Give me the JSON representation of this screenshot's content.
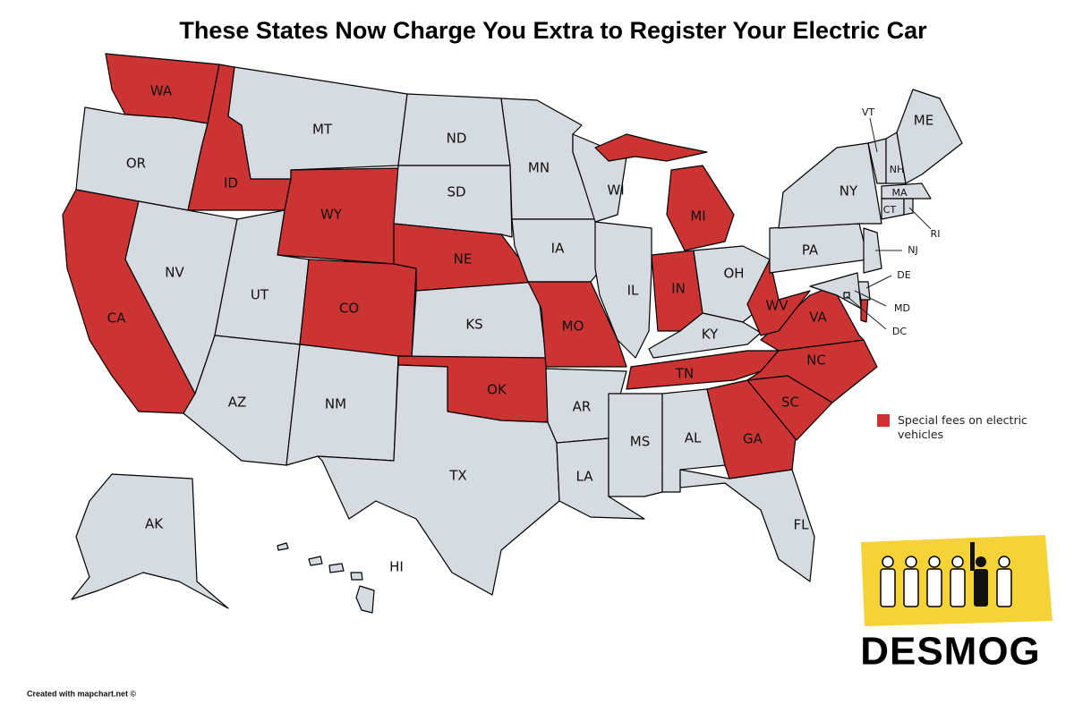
{
  "title": "These States Now Charge You Extra to Register Your Electric Car",
  "legend": {
    "label": "Special fees on electric vehicles",
    "color": "#cc3333"
  },
  "default_color": "#d5dbe0",
  "states": [
    {
      "label": "WA",
      "fee": true
    },
    {
      "label": "OR",
      "fee": false
    },
    {
      "label": "CA",
      "fee": true
    },
    {
      "label": "ID",
      "fee": true
    },
    {
      "label": "NV",
      "fee": false
    },
    {
      "label": "MT",
      "fee": false
    },
    {
      "label": "WY",
      "fee": true
    },
    {
      "label": "UT",
      "fee": false
    },
    {
      "label": "CO",
      "fee": true
    },
    {
      "label": "AZ",
      "fee": false
    },
    {
      "label": "NM",
      "fee": false
    },
    {
      "label": "ND",
      "fee": false
    },
    {
      "label": "SD",
      "fee": false
    },
    {
      "label": "NE",
      "fee": true
    },
    {
      "label": "KS",
      "fee": false
    },
    {
      "label": "OK",
      "fee": true
    },
    {
      "label": "TX",
      "fee": false
    },
    {
      "label": "MN",
      "fee": false
    },
    {
      "label": "IA",
      "fee": false
    },
    {
      "label": "MO",
      "fee": true
    },
    {
      "label": "AR",
      "fee": false
    },
    {
      "label": "LA",
      "fee": false
    },
    {
      "label": "WI",
      "fee": false
    },
    {
      "label": "IL",
      "fee": false
    },
    {
      "label": "MI",
      "fee": true
    },
    {
      "label": "IN",
      "fee": true
    },
    {
      "label": "OH",
      "fee": false
    },
    {
      "label": "KY",
      "fee": false
    },
    {
      "label": "TN",
      "fee": true
    },
    {
      "label": "MS",
      "fee": false
    },
    {
      "label": "AL",
      "fee": false
    },
    {
      "label": "GA",
      "fee": true
    },
    {
      "label": "FL",
      "fee": false
    },
    {
      "label": "SC",
      "fee": true
    },
    {
      "label": "NC",
      "fee": true
    },
    {
      "label": "VA",
      "fee": true
    },
    {
      "label": "WV",
      "fee": true
    },
    {
      "label": "PA",
      "fee": false
    },
    {
      "label": "NY",
      "fee": false
    },
    {
      "label": "VT",
      "fee": false
    },
    {
      "label": "NH",
      "fee": false
    },
    {
      "label": "ME",
      "fee": false
    },
    {
      "label": "MA",
      "fee": false
    },
    {
      "label": "CT",
      "fee": false
    },
    {
      "label": "RI",
      "fee": false
    },
    {
      "label": "NJ",
      "fee": false
    },
    {
      "label": "DE",
      "fee": false
    },
    {
      "label": "MD",
      "fee": false
    },
    {
      "label": "DC",
      "fee": false
    },
    {
      "label": "AK",
      "fee": false
    },
    {
      "label": "HI",
      "fee": false
    }
  ],
  "logo": "DESMOG",
  "credit": "Created with mapchart.net ©"
}
